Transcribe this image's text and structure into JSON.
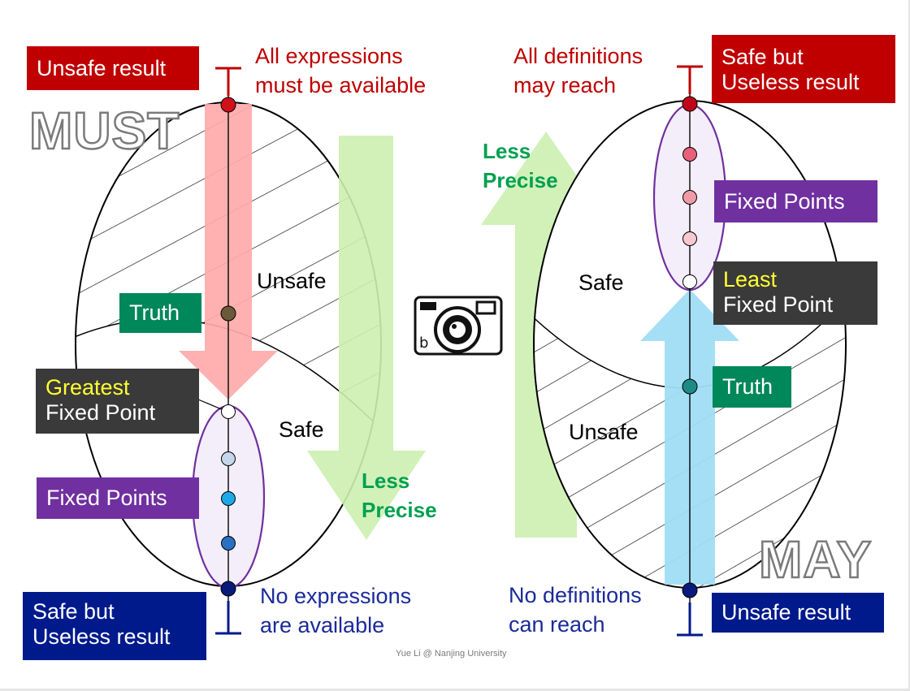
{
  "colors": {
    "red": "#c00000",
    "navy": "#001a8c",
    "purple": "#7030a0",
    "green_box": "#00875a",
    "green_text": "#00a050",
    "dark_box": "#3a3a3a",
    "highlight": "#ffff33",
    "pink_arrow": "#ffaaaa",
    "lightgreen_arrow": "#ccf0b0",
    "lightblue_arrow": "#a0ddf5"
  },
  "must": {
    "heading": "MUST",
    "top_box": "Unsafe result",
    "top_symbol": "T",
    "top_desc_line1": "All expressions",
    "top_desc_line2": "must be available",
    "truth": "Truth",
    "region_unsafe": "Unsafe",
    "region_safe": "Safe",
    "gfp_line1": "Greatest",
    "gfp_line2": "Fixed Point",
    "fixed_points": "Fixed Points",
    "bottom_box_line1": "Safe but",
    "bottom_box_line2": "Useless result",
    "bottom_symbol": "⊥",
    "bottom_desc_line1": "No expressions",
    "bottom_desc_line2": "are available",
    "precision_line1": "Less",
    "precision_line2": "Precise"
  },
  "may": {
    "heading": "MAY",
    "top_box_line1": "Safe but",
    "top_box_line2": "Useless result",
    "top_symbol": "T",
    "top_desc_line1": "All definitions",
    "top_desc_line2": "may reach",
    "fixed_points": "Fixed Points",
    "lfp_line1": "Least",
    "lfp_line2": "Fixed Point",
    "region_safe": "Safe",
    "truth": "Truth",
    "region_unsafe": "Unsafe",
    "bottom_box": "Unsafe result",
    "bottom_symbol": "⊥",
    "bottom_desc_line1": "No definitions",
    "bottom_desc_line2": "can reach",
    "precision_line1": "Less",
    "precision_line2": "Precise"
  },
  "camera_icon": "camera-icon",
  "footer": "Yue Li @ Nanjing University"
}
